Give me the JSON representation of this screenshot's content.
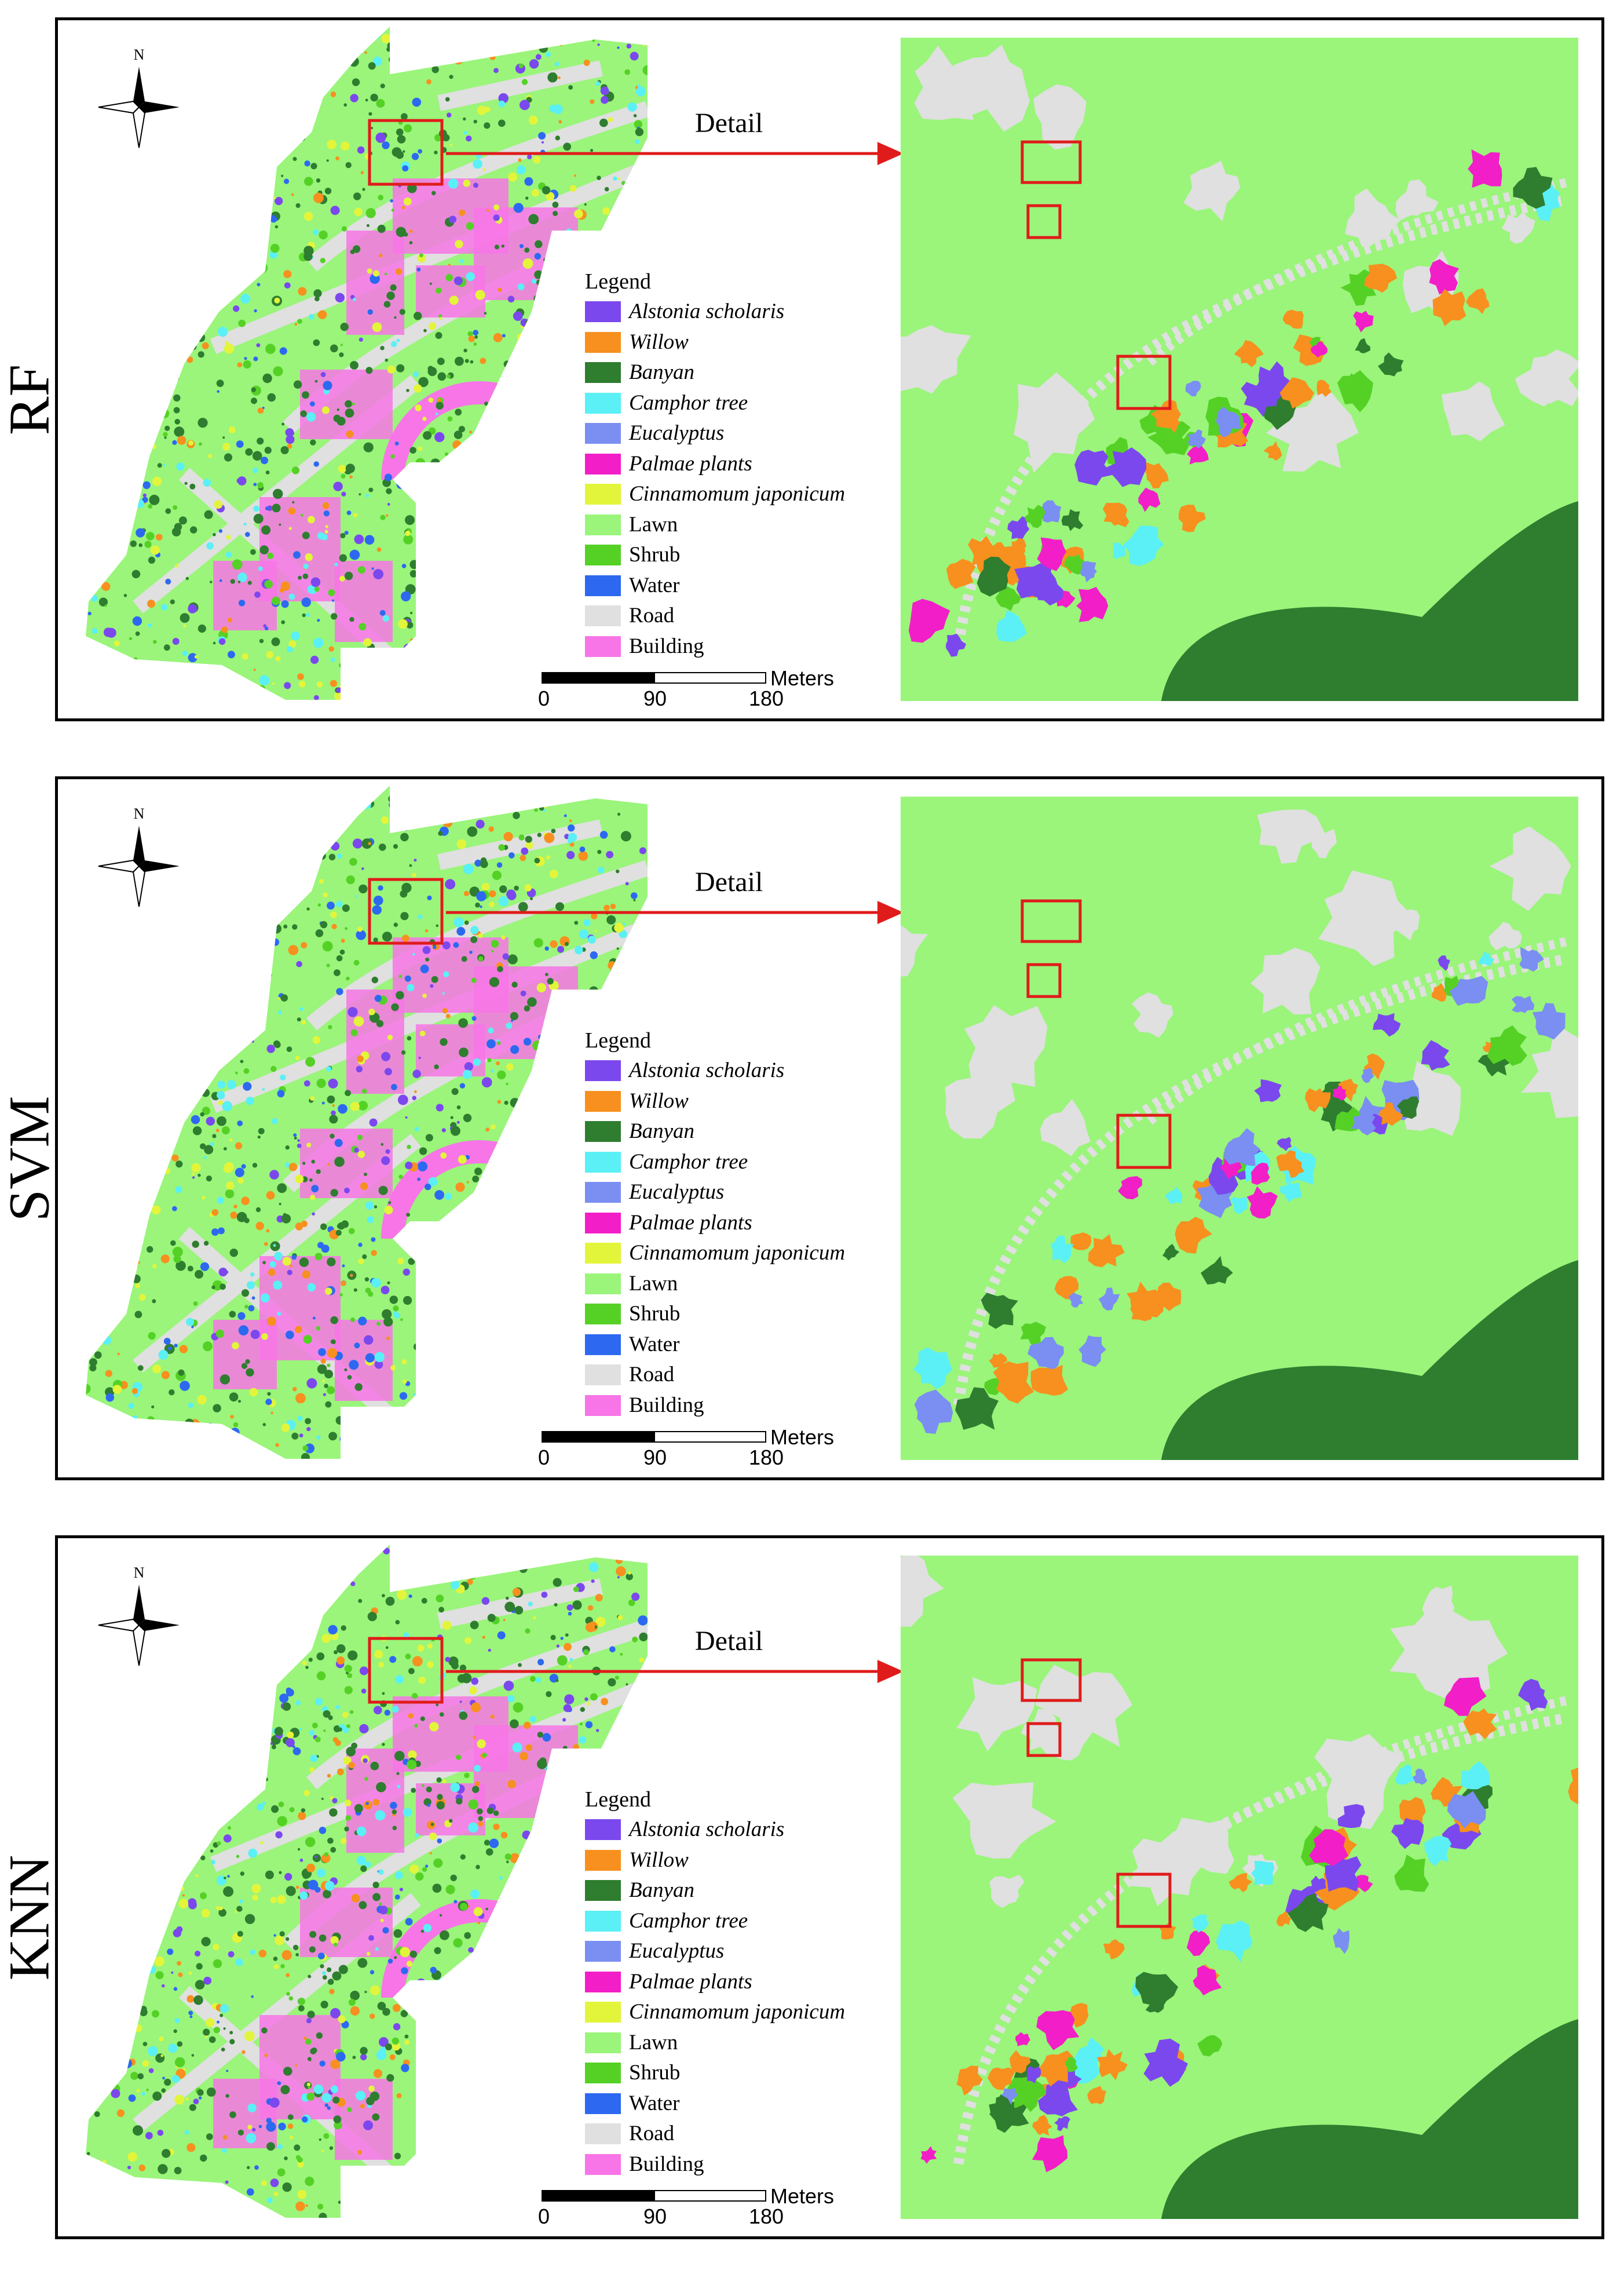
{
  "panels": [
    {
      "method": "RF",
      "detail_label": "Detail"
    },
    {
      "method": "SVM",
      "detail_label": "Detail"
    },
    {
      "method": "KNN",
      "detail_label": "Detail"
    }
  ],
  "north_arrow": {
    "letter": "N"
  },
  "legend": {
    "title": "Legend",
    "items": [
      {
        "label": "Alstonia scholaris",
        "color": "#7b48ee",
        "italic": true
      },
      {
        "label": "Willow",
        "color": "#f7901e",
        "italic": true
      },
      {
        "label": "Banyan",
        "color": "#2f7d2f",
        "italic": true
      },
      {
        "label": "Camphor tree",
        "color": "#5af0f5",
        "italic": true
      },
      {
        "label": "Eucalyptus",
        "color": "#7b8ef2",
        "italic": true
      },
      {
        "label": "Palmae plants",
        "color": "#f21ec8",
        "italic": true
      },
      {
        "label": "Cinnamomum japonicum",
        "color": "#e3f53a",
        "italic": true
      },
      {
        "label": "Lawn",
        "color": "#9af57a",
        "italic": false
      },
      {
        "label": "Shrub",
        "color": "#55d126",
        "italic": false
      },
      {
        "label": "Water",
        "color": "#2d69f0",
        "italic": false
      },
      {
        "label": "Road",
        "color": "#dfe0df",
        "italic": false
      },
      {
        "label": "Building",
        "color": "#f775e6",
        "italic": false
      }
    ]
  },
  "scalebar": {
    "units": "Meters",
    "ticks": [
      "0",
      "90",
      "180"
    ]
  },
  "colors": {
    "frame": "#000000",
    "highlight": "#e01b1b",
    "lawn": "#9af57a",
    "road": "#dfe0df",
    "banyan": "#2f7d2f",
    "willow": "#f7901e",
    "building": "#f775e6"
  }
}
